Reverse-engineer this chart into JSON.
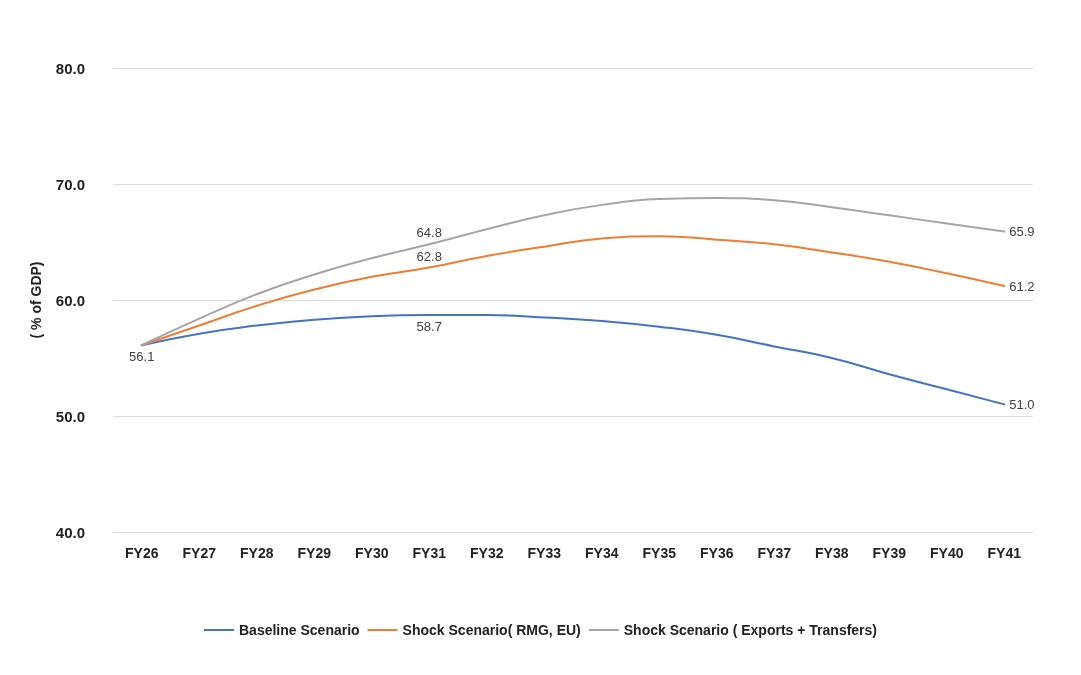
{
  "chart_data": {
    "type": "line",
    "ylabel": "( % of GDP)",
    "categories": [
      "FY26",
      "FY27",
      "FY28",
      "FY29",
      "FY30",
      "FY31",
      "FY32",
      "FY33",
      "FY34",
      "FY35",
      "FY36",
      "FY37",
      "FY38",
      "FY39",
      "FY40",
      "FY41"
    ],
    "series": [
      {
        "name": "Baseline Scenario",
        "color": "#4472c4",
        "values": [
          56.1,
          57.1,
          57.8,
          58.3,
          58.6,
          58.7,
          58.7,
          58.5,
          58.2,
          57.7,
          57.0,
          56.0,
          55.0,
          53.6,
          52.3,
          51.0
        ],
        "value_labels": [
          "56.1",
          null,
          null,
          null,
          null,
          "58.7",
          null,
          null,
          null,
          null,
          null,
          null,
          null,
          null,
          null,
          "51.0"
        ]
      },
      {
        "name": "Shock Scenario( RMG, EU)",
        "color": "#ed7d31",
        "values": [
          56.1,
          57.8,
          59.5,
          60.9,
          62.0,
          62.8,
          63.8,
          64.6,
          65.3,
          65.5,
          65.2,
          64.8,
          64.1,
          63.3,
          62.3,
          61.2
        ],
        "value_labels": [
          null,
          null,
          null,
          null,
          null,
          "62.8",
          null,
          null,
          null,
          null,
          null,
          null,
          null,
          null,
          null,
          "61.2"
        ]
      },
      {
        "name": "Shock Scenario ( Exports + Transfers)",
        "color": "#a5a5a5",
        "values": [
          56.1,
          58.4,
          60.5,
          62.2,
          63.6,
          64.8,
          66.1,
          67.3,
          68.2,
          68.7,
          68.8,
          68.6,
          68.0,
          67.3,
          66.6,
          65.9
        ],
        "value_labels": [
          null,
          null,
          null,
          null,
          null,
          "64.8",
          null,
          null,
          null,
          null,
          null,
          null,
          null,
          null,
          null,
          "65.9"
        ]
      }
    ],
    "ylim": [
      40,
      80
    ],
    "yticks": [
      {
        "value": 40,
        "label": "40.0"
      },
      {
        "value": 50,
        "label": "50.0"
      },
      {
        "value": 60,
        "label": "60.0"
      },
      {
        "value": 70,
        "label": "70.0"
      },
      {
        "value": 80,
        "label": "80.0"
      }
    ],
    "grid": "y",
    "legend": "bottom",
    "marker": "none",
    "line_style": "solid"
  }
}
